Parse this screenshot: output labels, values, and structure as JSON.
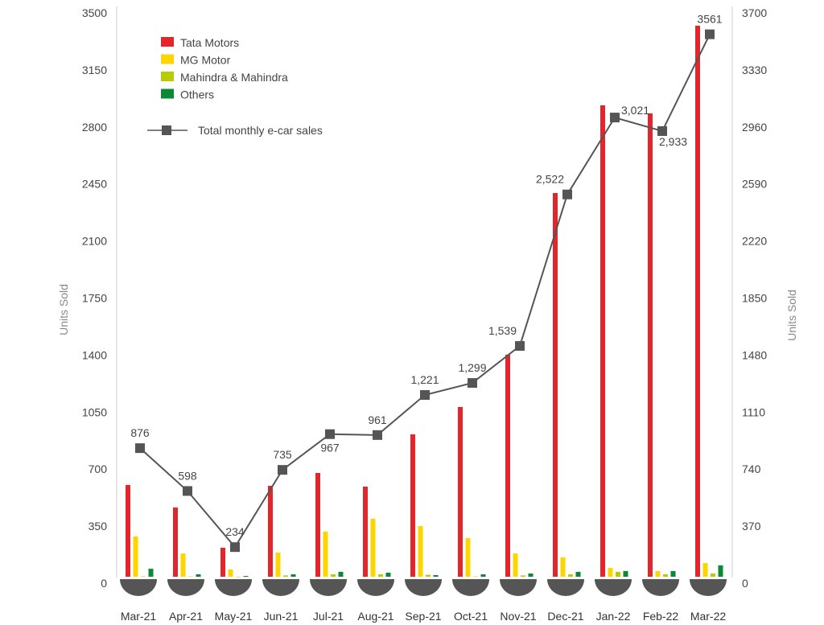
{
  "chart_data": {
    "type": "bar",
    "categories": [
      "Mar-21",
      "Apr-21",
      "May-21",
      "Jun-21",
      "Jul-21",
      "Aug-21",
      "Sep-21",
      "Oct-21",
      "Nov-21",
      "Dec-21",
      "Jan-22",
      "Feb-22",
      "Mar-22"
    ],
    "series": [
      {
        "name": "Tata Motors",
        "color": "#e3262b",
        "values": [
          563,
          425,
          178,
          558,
          637,
          553,
          874,
          1042,
          1363,
          2355,
          2893,
          2844,
          3382
        ]
      },
      {
        "name": "MG Motor",
        "color": "#ffd500",
        "values": [
          247,
          143,
          45,
          148,
          277,
          356,
          311,
          237,
          143,
          119,
          54,
          35,
          84
        ]
      },
      {
        "name": "Mahindra & Mahindra",
        "color": "#b8cc00",
        "values": [
          2,
          2,
          0,
          8,
          15,
          15,
          12,
          2,
          8,
          15,
          30,
          15,
          20
        ]
      },
      {
        "name": "Others",
        "color": "#0a8a36",
        "values": [
          49,
          15,
          5,
          15,
          30,
          25,
          10,
          15,
          20,
          30,
          35,
          35,
          70
        ]
      }
    ],
    "line": {
      "name": "Total monthly e-car sales",
      "color": "#555555",
      "values": [
        876,
        598,
        234,
        735,
        967,
        961,
        1221,
        1299,
        1539,
        2522,
        3021,
        2933,
        3561
      ],
      "labels": [
        "876",
        "598",
        "234",
        "735",
        "967",
        "961",
        "1,221",
        "1,299",
        "1,539",
        "2,522",
        "3,021",
        "2,933",
        "3561"
      ]
    },
    "ylabel": "Units Sold",
    "y2label": "Units Sold",
    "ylim": [
      0,
      3500
    ],
    "yticks": [
      "0",
      "350",
      "700",
      "1050",
      "1400",
      "1750",
      "2100",
      "2450",
      "2800",
      "3150",
      "3500"
    ],
    "y2lim": [
      0,
      3700
    ],
    "y2ticks": [
      "0",
      "370",
      "740",
      "1110",
      "1480",
      "1850",
      "2220",
      "2590",
      "2960",
      "3330",
      "3700"
    ],
    "legend": "top-left"
  }
}
